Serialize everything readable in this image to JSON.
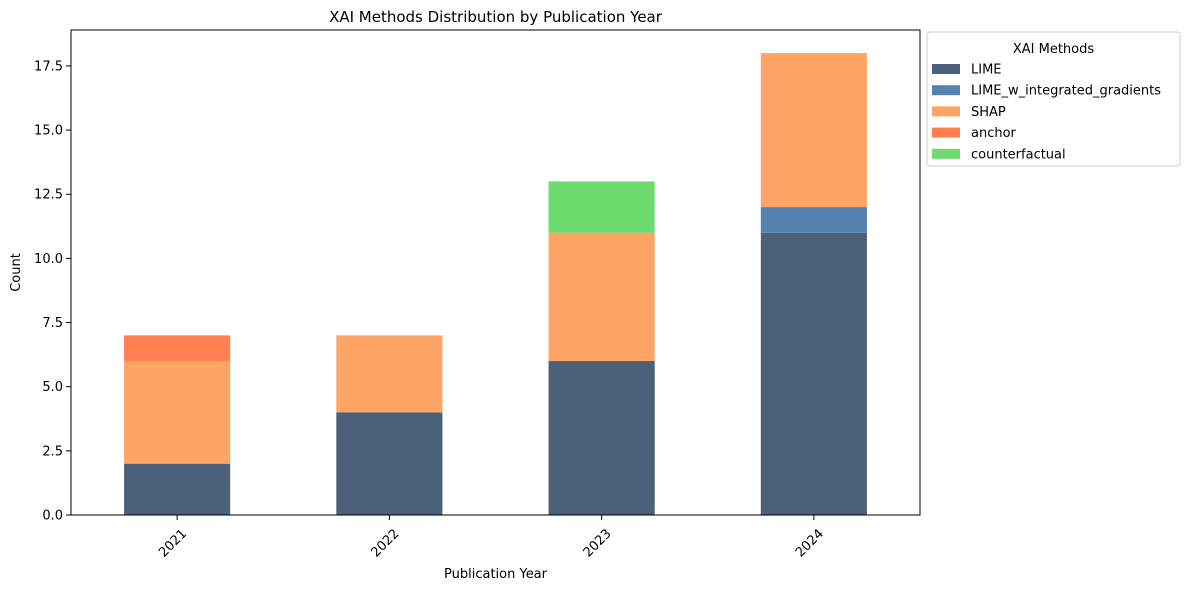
{
  "chart_data": {
    "type": "bar",
    "stacked": true,
    "title": "XAI Methods Distribution by Publication Year",
    "xlabel": "Publication Year",
    "ylabel": "Count",
    "categories": [
      "2021",
      "2022",
      "2023",
      "2024"
    ],
    "ylim": [
      0,
      18.9
    ],
    "yticks": [
      "0.0",
      "2.5",
      "5.0",
      "7.5",
      "10.0",
      "12.5",
      "15.0",
      "17.5"
    ],
    "ytick_values": [
      0,
      2.5,
      5,
      7.5,
      10,
      12.5,
      15,
      17.5
    ],
    "grid": false,
    "legend": {
      "title": "XAI Methods",
      "placement": "outside-upper-right"
    },
    "series": [
      {
        "name": "LIME",
        "color": "#4b6079",
        "values": [
          2,
          4,
          6,
          11
        ]
      },
      {
        "name": "LIME_w_integrated_gradients",
        "color": "#5481b0",
        "values": [
          0,
          0,
          0,
          1
        ]
      },
      {
        "name": "SHAP",
        "color": "#fea565",
        "values": [
          4,
          3,
          5,
          6
        ]
      },
      {
        "name": "anchor",
        "color": "#ff7f50",
        "values": [
          1,
          0,
          0,
          0
        ]
      },
      {
        "name": "counterfactual",
        "color": "#6ddb6d",
        "values": [
          0,
          0,
          2,
          0
        ]
      }
    ]
  }
}
